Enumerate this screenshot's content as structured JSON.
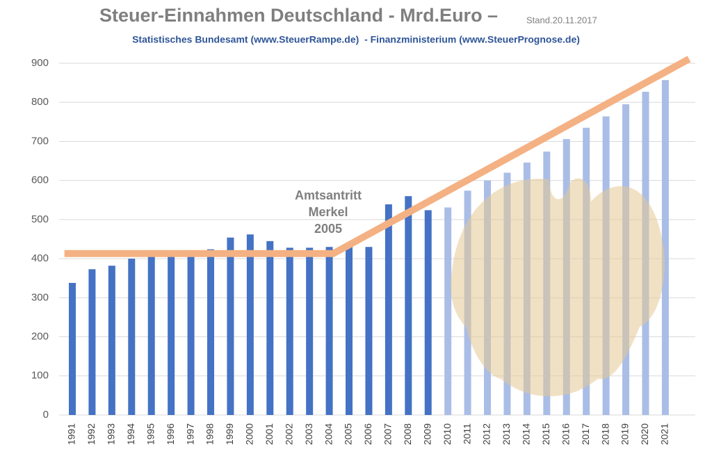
{
  "chart_data": {
    "type": "bar",
    "title": "Steuer-Einnahmen Deutschland - Mrd.Euro –",
    "title_note": "Stand.20.11.2017",
    "subtitle": "Statistisches Bundesamt (www.SteuerRampe.de)  - Finanzministerium (www.SteuerPrognose.de)",
    "annotation": [
      "Amtsantritt",
      "Merkel",
      "2005"
    ],
    "categories": [
      "1991",
      "1992",
      "1993",
      "1994",
      "1995",
      "1996",
      "1997",
      "1998",
      "1999",
      "2000",
      "2001",
      "2002",
      "2003",
      "2004",
      "2005",
      "2006",
      "2007",
      "2008",
      "2009",
      "2010",
      "2011",
      "2012",
      "2013",
      "2014",
      "2015",
      "2016",
      "2017",
      "2018",
      "2019",
      "2020",
      "2021"
    ],
    "values": [
      338,
      373,
      382,
      400,
      415,
      410,
      410,
      424,
      454,
      462,
      445,
      428,
      428,
      430,
      430,
      430,
      539,
      560,
      524,
      531,
      574,
      600,
      620,
      646,
      674,
      706,
      735,
      764,
      795,
      827,
      857
    ],
    "colors": [
      "#4472c4",
      "#4472c4",
      "#4472c4",
      "#4472c4",
      "#4472c4",
      "#4472c4",
      "#4472c4",
      "#4472c4",
      "#4472c4",
      "#4472c4",
      "#4472c4",
      "#4472c4",
      "#4472c4",
      "#4472c4",
      "#4472c4",
      "#4472c4",
      "#4472c4",
      "#4472c4",
      "#4472c4",
      "#a9bde6",
      "#a9bde6",
      "#a9bde6",
      "#a9bde6",
      "#a9bde6",
      "#a9bde6",
      "#a9bde6",
      "#a9bde6",
      "#a9bde6",
      "#a9bde6",
      "#a9bde6",
      "#a9bde6"
    ],
    "trend": {
      "color": "#f4b183",
      "x": [
        1990.6,
        2004.2,
        2022.2
      ],
      "values": [
        413,
        413,
        911
      ]
    },
    "ylim": [
      0,
      900
    ],
    "yticks": [
      0,
      100,
      200,
      300,
      400,
      500,
      600,
      700,
      800,
      900
    ],
    "grid": true
  }
}
